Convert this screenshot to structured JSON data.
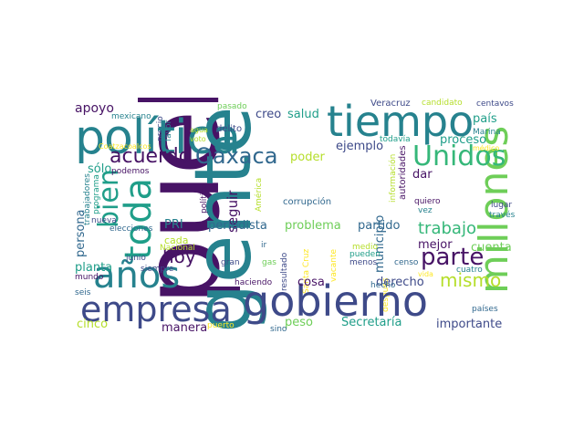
{
  "palette": {
    "dark_purple": "#471365",
    "indigo": "#3e4a89",
    "steel_blue": "#31688e",
    "teal": "#26828e",
    "sea_green": "#1f9e89",
    "green": "#35b779",
    "light_green": "#6ece58",
    "lime": "#b5de2b",
    "yellow": "#fde725"
  },
  "words": {
    "pueblo": "pueblo",
    "gente": "gente",
    "gobierno": "gobierno",
    "politica": "política",
    "tiempo": "tiempo",
    "empresa": "empresa",
    "millones": "millones",
    "anos": "años",
    "toda": "toda",
    "bien": "bien",
    "oaxaca": "Oaxaca",
    "acuerdo": "acuerdo",
    "unidos": "Unidos",
    "parte": "parte",
    "trabajo": "trabajo",
    "mismo": "mismo",
    "hoy": "hoy",
    "apoyo": "apoyo",
    "creo": "creo",
    "salud": "salud",
    "pais": "país",
    "proceso": "proceso",
    "ejemplo": "ejemplo",
    "poder": "poder",
    "solo": "sólo",
    "dar": "dar",
    "persona": "persona",
    "planta": "planta",
    "periodista": "periodista",
    "seguir": "seguir",
    "municipio": "municipio",
    "problema": "problema",
    "partido": "partido",
    "cuenta": "cuenta",
    "mejor": "mejor",
    "pri": "PRI",
    "cada": "cada",
    "cosa": "cosa",
    "derecho": "derecho",
    "manera": "manera",
    "cinco": "cinco",
    "peso": "peso",
    "secretaria": "Secretaría",
    "importante": "importante",
    "delito": "delito",
    "veracruz": "Veracruz",
    "candidato": "candidato",
    "centavos": "centavos",
    "pasado": "pasado",
    "mexicano": "mexicano",
    "precio": "precio",
    "favor": "favor",
    "agua": "agua",
    "voto": "voto",
    "coatzacoalcos": "Coatzacoalcos",
    "todavia": "todavía",
    "marina": "Marina",
    "medico": "médico",
    "informacion": "información",
    "autoridades": "autoridades",
    "hablando": "hablando",
    "trabajadores": "trabajadores",
    "programa": "programa",
    "podemos": "podemos",
    "politico": "político",
    "america": "América",
    "corrupcion": "corrupción",
    "quiero": "quiero",
    "lugar": "lugar",
    "traves": "través",
    "vez": "vez",
    "nueva": "nueva",
    "elecciones": "elecciones",
    "nacional": "Nacional",
    "junio": "junio",
    "siempre": "siempre",
    "mundo": "mundo",
    "seis": "seis",
    "gran": "gran",
    "gas": "gas",
    "ir": "ir",
    "resultado": "resultado",
    "santa_cruz": "Santa Cruz",
    "vacante": "vacante",
    "medio": "medio",
    "pueden": "pueden",
    "menos": "menos",
    "censo": "censo",
    "cuatro": "cuatro",
    "vida": "vida",
    "haciendo": "haciendo",
    "hecho": "hecho",
    "despues": "después",
    "paises": "países",
    "puerto": "puerto",
    "sino": "sino"
  }
}
